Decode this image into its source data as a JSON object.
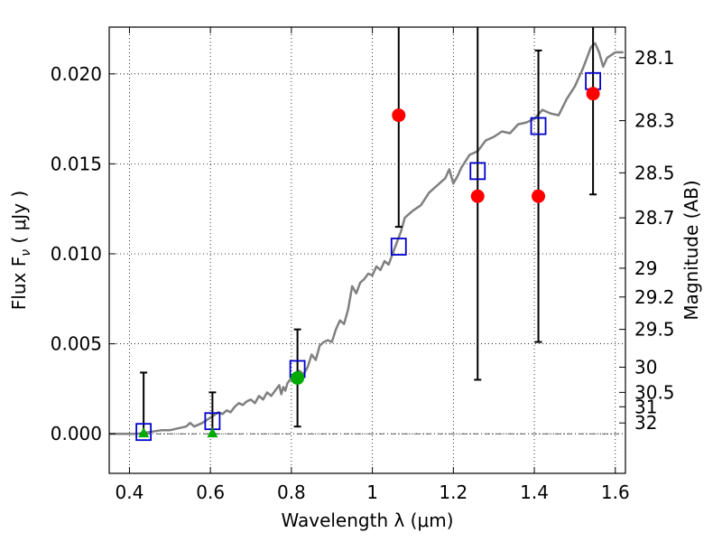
{
  "chart_data": {
    "type": "scatter",
    "xlabel": "Wavelength  λ (μm)",
    "ylabel": "Flux  F",
    "ylabel_subscript": "ν",
    "ylabel_unit": "  ( μJy )",
    "y2label": "Magnitude (AB)",
    "xlim": [
      0.35,
      1.625
    ],
    "ylim": [
      -0.0022,
      0.0226
    ],
    "xticks": [
      0.4,
      0.6,
      0.8,
      1.0,
      1.2,
      1.4,
      1.6
    ],
    "xtick_labels": [
      "0.4",
      "0.6",
      "0.8",
      "1",
      "1.2",
      "1.4",
      "1.6"
    ],
    "yticks": [
      0.0,
      0.005,
      0.01,
      0.015,
      0.02
    ],
    "ytick_labels": [
      "0.000",
      "0.005",
      "0.010",
      "0.015",
      "0.020"
    ],
    "y2ticks": [
      {
        "label": "28.1",
        "flux": 0.0209
      },
      {
        "label": "28.3",
        "flux": 0.0174
      },
      {
        "label": "28.5",
        "flux": 0.0145
      },
      {
        "label": "28.7",
        "flux": 0.012
      },
      {
        "label": "29",
        "flux": 0.0092
      },
      {
        "label": "29.2",
        "flux": 0.0076
      },
      {
        "label": "29.5",
        "flux": 0.0058
      },
      {
        "label": "30",
        "flux": 0.0037
      },
      {
        "label": "30.5",
        "flux": 0.0023
      },
      {
        "label": "31",
        "flux": 0.0015
      },
      {
        "label": "32",
        "flux": 0.0006
      }
    ],
    "grid": true,
    "zero_line": true,
    "colors": {
      "model": "#808080",
      "model_points": "#0000cc",
      "red_points": "#ff0000",
      "green_points": "#00aa00",
      "errorbar": "#000000"
    },
    "model_sed": {
      "x": [
        0.35,
        0.38,
        0.42,
        0.45,
        0.48,
        0.5,
        0.52,
        0.54,
        0.55,
        0.56,
        0.57,
        0.58,
        0.6,
        0.62,
        0.63,
        0.64,
        0.65,
        0.66,
        0.67,
        0.68,
        0.69,
        0.7,
        0.71,
        0.72,
        0.73,
        0.74,
        0.75,
        0.76,
        0.77,
        0.775,
        0.78,
        0.785,
        0.79,
        0.8,
        0.81,
        0.82,
        0.83,
        0.84,
        0.85,
        0.86,
        0.87,
        0.88,
        0.89,
        0.9,
        0.91,
        0.92,
        0.93,
        0.94,
        0.95,
        0.96,
        0.97,
        0.98,
        0.99,
        1.0,
        1.01,
        1.02,
        1.03,
        1.04,
        1.05,
        1.06,
        1.07,
        1.08,
        1.1,
        1.12,
        1.14,
        1.16,
        1.18,
        1.19,
        1.2,
        1.21,
        1.22,
        1.24,
        1.26,
        1.28,
        1.3,
        1.32,
        1.34,
        1.36,
        1.38,
        1.4,
        1.42,
        1.44,
        1.46,
        1.48,
        1.5,
        1.52,
        1.53,
        1.54,
        1.55,
        1.56,
        1.57,
        1.58,
        1.6,
        1.62
      ],
      "y": [
        0.0,
        0.0,
        0.0,
        0.0001,
        0.0002,
        0.0002,
        0.0003,
        0.0004,
        0.0006,
        0.0004,
        0.0005,
        0.0006,
        0.0009,
        0.0012,
        0.0011,
        0.0013,
        0.0012,
        0.0015,
        0.0017,
        0.0016,
        0.0018,
        0.0019,
        0.0017,
        0.0021,
        0.0019,
        0.0023,
        0.0021,
        0.0024,
        0.0027,
        0.0022,
        0.0026,
        0.0024,
        0.0028,
        0.0031,
        0.0029,
        0.0035,
        0.0033,
        0.0037,
        0.0044,
        0.0041,
        0.0049,
        0.0051,
        0.0052,
        0.0051,
        0.0058,
        0.0063,
        0.0061,
        0.0069,
        0.0082,
        0.0078,
        0.0084,
        0.0086,
        0.0089,
        0.0088,
        0.0093,
        0.0091,
        0.0096,
        0.0094,
        0.01,
        0.0106,
        0.0112,
        0.012,
        0.0124,
        0.0127,
        0.0134,
        0.0138,
        0.0142,
        0.0147,
        0.0139,
        0.0143,
        0.0148,
        0.0155,
        0.0157,
        0.0163,
        0.0165,
        0.0168,
        0.0167,
        0.0172,
        0.0173,
        0.0175,
        0.018,
        0.0178,
        0.0177,
        0.0186,
        0.0193,
        0.0203,
        0.0209,
        0.0215,
        0.0217,
        0.0212,
        0.0204,
        0.0209,
        0.0212,
        0.0212
      ]
    },
    "model_points": {
      "x": [
        0.435,
        0.605,
        0.815,
        1.065,
        1.26,
        1.41,
        1.545
      ],
      "y": [
        0.0001,
        0.0007,
        0.0036,
        0.0104,
        0.0146,
        0.0171,
        0.0196
      ]
    },
    "red_points": {
      "x": [
        1.065,
        1.26,
        1.41,
        1.545
      ],
      "y": [
        0.0177,
        0.0132,
        0.0132,
        0.0189
      ],
      "err_low": [
        0.0115,
        0.003,
        0.0051,
        0.0133
      ],
      "err_high": [
        0.0226,
        0.0226,
        0.0213,
        0.0226
      ]
    },
    "green_points": {
      "x": [
        0.815
      ],
      "y": [
        0.0031
      ],
      "err_low": [
        0.0004
      ],
      "err_high": [
        0.0058
      ]
    },
    "green_upper_limits": {
      "x": [
        0.435,
        0.605
      ],
      "y": [
        0.0,
        0.0
      ],
      "err_low": [
        0.0,
        0.0
      ],
      "err_high": [
        0.0034,
        0.0023
      ]
    }
  }
}
